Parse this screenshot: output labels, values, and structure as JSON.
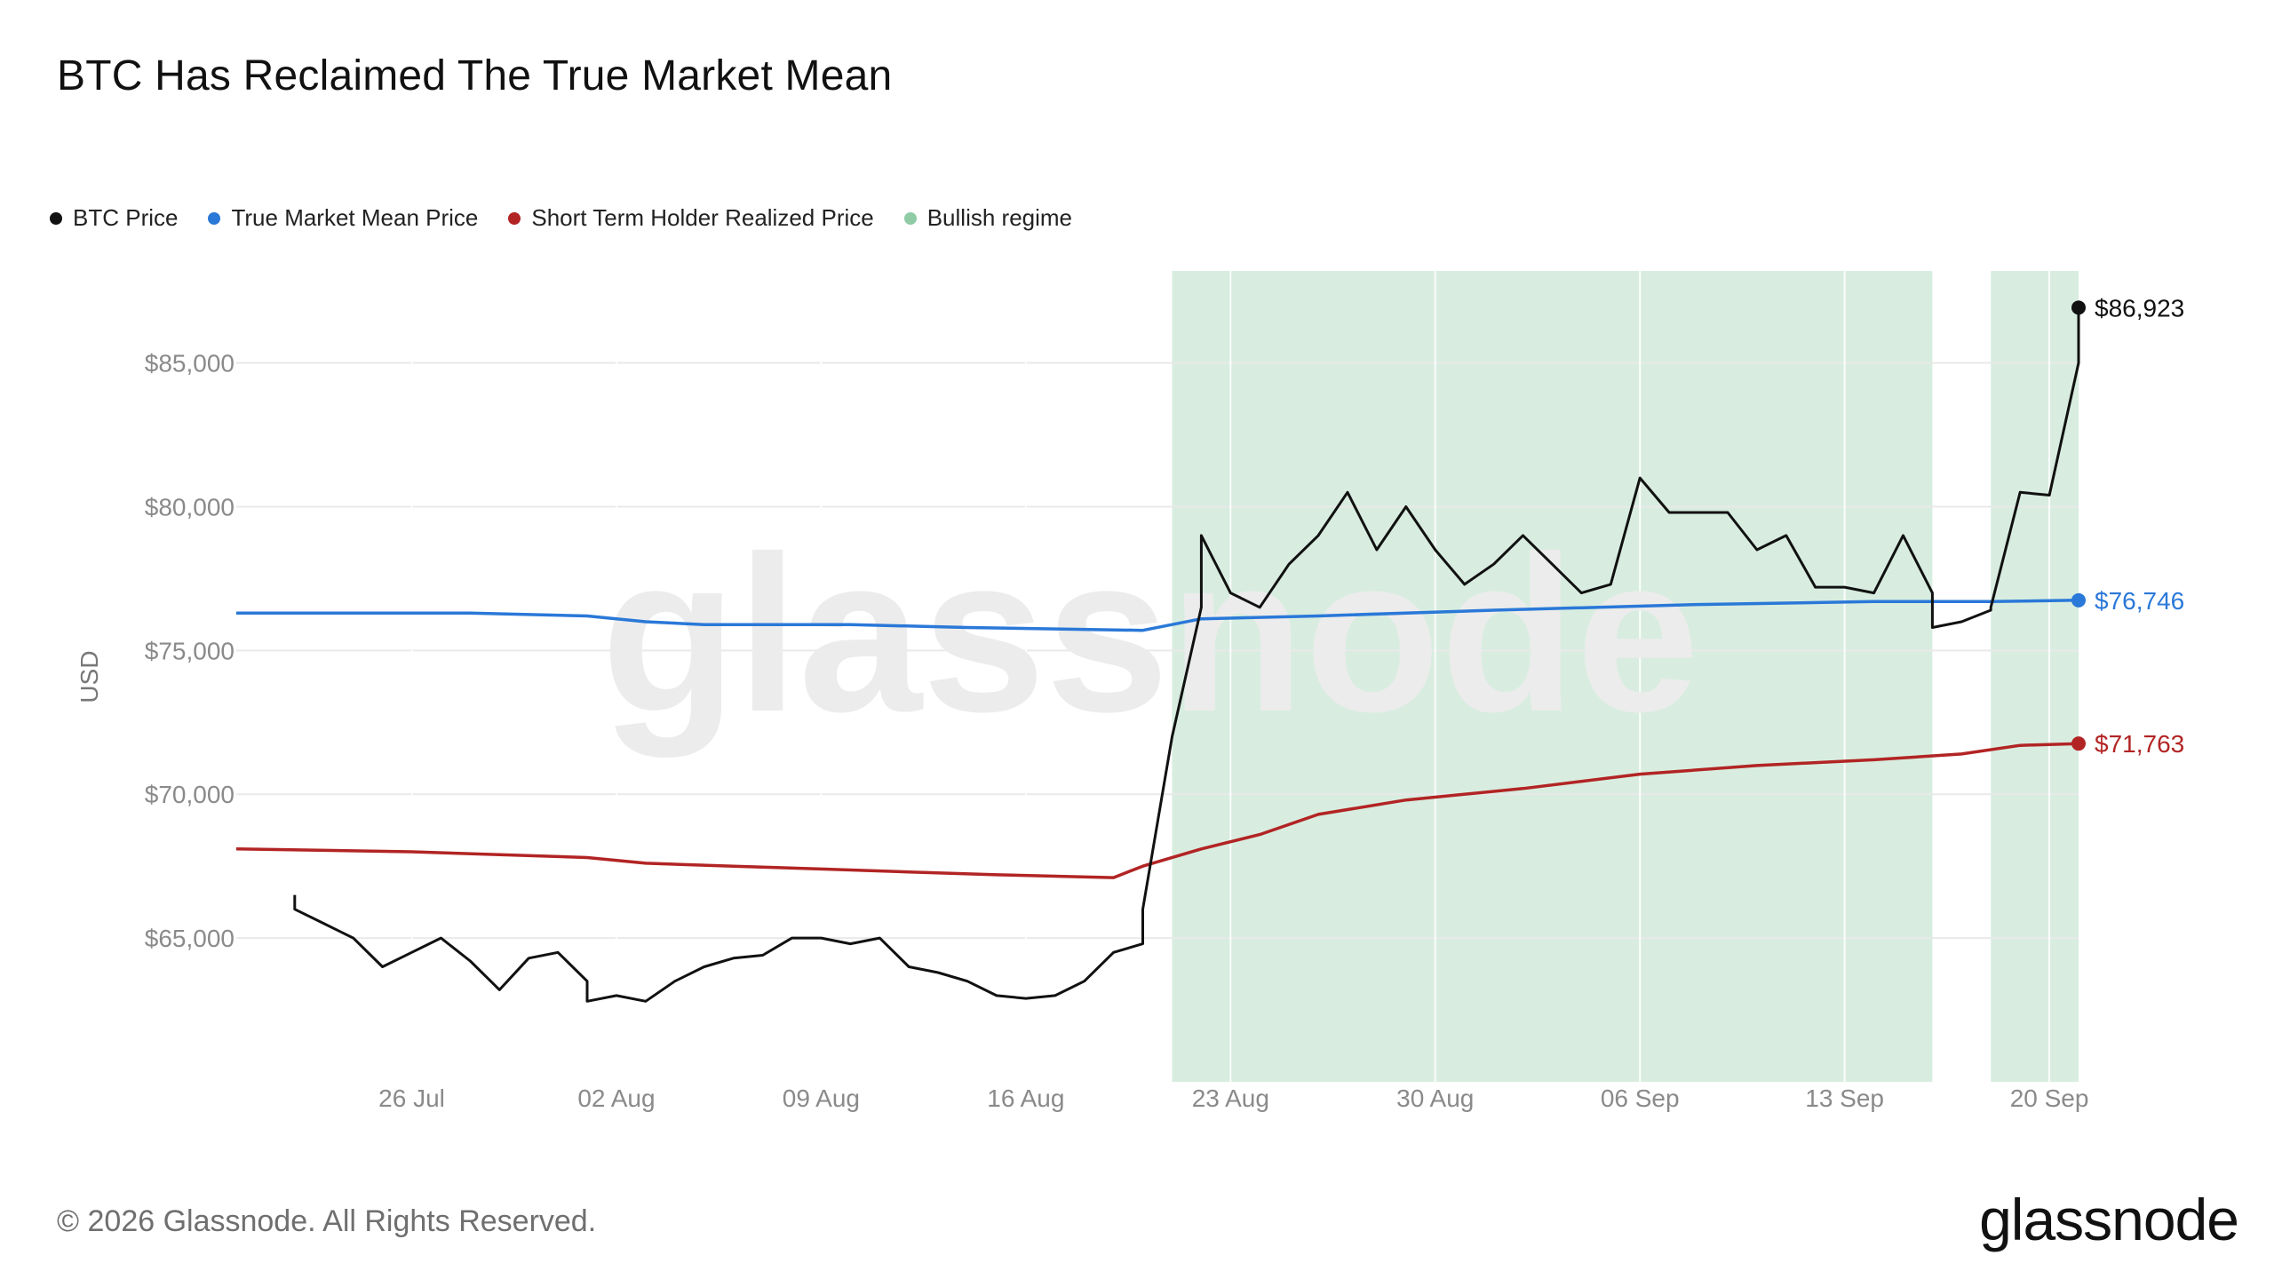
{
  "chart_data": {
    "type": "line",
    "title": "BTC Has Reclaimed The True Market Mean",
    "ylabel": "USD",
    "xlabel": "",
    "ylim": [
      60000,
      88200
    ],
    "y_ticks": [
      65000,
      70000,
      75000,
      80000,
      85000
    ],
    "y_tick_labels": [
      "$65,000",
      "$70,000",
      "$75,000",
      "$80,000",
      "$85,000"
    ],
    "x_range": [
      "2026-07-20",
      "2026-09-21"
    ],
    "x_ticks": [
      "2026-07-26",
      "2026-08-02",
      "2026-08-09",
      "2026-08-16",
      "2026-08-23",
      "2026-08-30",
      "2026-09-06",
      "2026-09-13",
      "2026-09-20"
    ],
    "x_tick_labels": [
      "26 Jul",
      "02 Aug",
      "09 Aug",
      "16 Aug",
      "23 Aug",
      "30 Aug",
      "06 Sep",
      "13 Sep",
      "20 Sep"
    ],
    "grid": true,
    "legend_position": "top-left",
    "series": [
      {
        "name": "BTC Price",
        "color": "#111111",
        "points": [
          [
            "2026-07-22",
            66500
          ],
          [
            "2026-07-22",
            66000
          ],
          [
            "2026-07-23",
            65500
          ],
          [
            "2026-07-24",
            65000
          ],
          [
            "2026-07-25",
            64000
          ],
          [
            "2026-07-26",
            64500
          ],
          [
            "2026-07-27",
            65000
          ],
          [
            "2026-07-28",
            64200
          ],
          [
            "2026-07-29",
            63200
          ],
          [
            "2026-07-30",
            64300
          ],
          [
            "2026-07-31",
            64500
          ],
          [
            "2026-08-01",
            63500
          ],
          [
            "2026-08-01",
            62800
          ],
          [
            "2026-08-02",
            63000
          ],
          [
            "2026-08-03",
            62800
          ],
          [
            "2026-08-04",
            63500
          ],
          [
            "2026-08-05",
            64000
          ],
          [
            "2026-08-06",
            64300
          ],
          [
            "2026-08-07",
            64400
          ],
          [
            "2026-08-08",
            65000
          ],
          [
            "2026-08-09",
            65000
          ],
          [
            "2026-08-10",
            64800
          ],
          [
            "2026-08-11",
            65000
          ],
          [
            "2026-08-12",
            64000
          ],
          [
            "2026-08-13",
            63800
          ],
          [
            "2026-08-14",
            63500
          ],
          [
            "2026-08-15",
            63000
          ],
          [
            "2026-08-16",
            62900
          ],
          [
            "2026-08-17",
            63000
          ],
          [
            "2026-08-18",
            63500
          ],
          [
            "2026-08-19",
            64500
          ],
          [
            "2026-08-20",
            64800
          ],
          [
            "2026-08-20",
            66000
          ],
          [
            "2026-08-21",
            72000
          ],
          [
            "2026-08-22",
            76500
          ],
          [
            "2026-08-22",
            79000
          ],
          [
            "2026-08-23",
            77000
          ],
          [
            "2026-08-24",
            76500
          ],
          [
            "2026-08-25",
            78000
          ],
          [
            "2026-08-26",
            79000
          ],
          [
            "2026-08-27",
            80500
          ],
          [
            "2026-08-28",
            78500
          ],
          [
            "2026-08-29",
            80000
          ],
          [
            "2026-08-30",
            78500
          ],
          [
            "2026-08-31",
            77300
          ],
          [
            "2026-09-01",
            78000
          ],
          [
            "2026-09-02",
            79000
          ],
          [
            "2026-09-03",
            78000
          ],
          [
            "2026-09-04",
            77000
          ],
          [
            "2026-09-05",
            77300
          ],
          [
            "2026-09-06",
            81000
          ],
          [
            "2026-09-07",
            79800
          ],
          [
            "2026-09-08",
            79800
          ],
          [
            "2026-09-09",
            79800
          ],
          [
            "2026-09-10",
            78500
          ],
          [
            "2026-09-11",
            79000
          ],
          [
            "2026-09-12",
            77200
          ],
          [
            "2026-09-13",
            77200
          ],
          [
            "2026-09-14",
            77000
          ],
          [
            "2026-09-15",
            79000
          ],
          [
            "2026-09-16",
            77000
          ],
          [
            "2026-09-16",
            75800
          ],
          [
            "2026-09-17",
            76000
          ],
          [
            "2026-09-18",
            76400
          ],
          [
            "2026-09-18",
            76500
          ],
          [
            "2026-09-19",
            80500
          ],
          [
            "2026-09-20",
            80400
          ],
          [
            "2026-09-21",
            85000
          ],
          [
            "2026-09-21",
            86923
          ]
        ],
        "last_value_label": "$86,923"
      },
      {
        "name": "True Market Mean Price",
        "color": "#2a78d8",
        "points": [
          [
            "2026-07-20",
            76300
          ],
          [
            "2026-07-28",
            76300
          ],
          [
            "2026-08-01",
            76200
          ],
          [
            "2026-08-03",
            76000
          ],
          [
            "2026-08-05",
            75900
          ],
          [
            "2026-08-10",
            75900
          ],
          [
            "2026-08-14",
            75800
          ],
          [
            "2026-08-20",
            75700
          ],
          [
            "2026-08-22",
            76100
          ],
          [
            "2026-08-26",
            76200
          ],
          [
            "2026-09-01",
            76400
          ],
          [
            "2026-09-08",
            76600
          ],
          [
            "2026-09-14",
            76700
          ],
          [
            "2026-09-18",
            76700
          ],
          [
            "2026-09-21",
            76746
          ]
        ],
        "last_value_label": "$76,746"
      },
      {
        "name": "Short Term Holder Realized Price",
        "color": "#b22424",
        "points": [
          [
            "2026-07-20",
            68100
          ],
          [
            "2026-07-26",
            68000
          ],
          [
            "2026-07-29",
            67900
          ],
          [
            "2026-08-01",
            67800
          ],
          [
            "2026-08-03",
            67600
          ],
          [
            "2026-08-06",
            67500
          ],
          [
            "2026-08-09",
            67400
          ],
          [
            "2026-08-12",
            67300
          ],
          [
            "2026-08-15",
            67200
          ],
          [
            "2026-08-19",
            67100
          ],
          [
            "2026-08-20",
            67500
          ],
          [
            "2026-08-22",
            68100
          ],
          [
            "2026-08-24",
            68600
          ],
          [
            "2026-08-26",
            69300
          ],
          [
            "2026-08-29",
            69800
          ],
          [
            "2026-09-02",
            70200
          ],
          [
            "2026-09-06",
            70700
          ],
          [
            "2026-09-10",
            71000
          ],
          [
            "2026-09-14",
            71200
          ],
          [
            "2026-09-17",
            71400
          ],
          [
            "2026-09-19",
            71700
          ],
          [
            "2026-09-21",
            71763
          ]
        ],
        "last_value_label": "$71,763"
      }
    ],
    "regimes": {
      "name": "Bullish regime",
      "color": "#d8ede0",
      "ranges": [
        [
          "2026-08-21",
          "2026-09-16"
        ],
        [
          "2026-09-18",
          "2026-09-21"
        ]
      ]
    }
  },
  "footer": {
    "copyright": "© 2026 Glassnode. All Rights Reserved.",
    "brand": "glassnode"
  },
  "watermark": "glassnode"
}
